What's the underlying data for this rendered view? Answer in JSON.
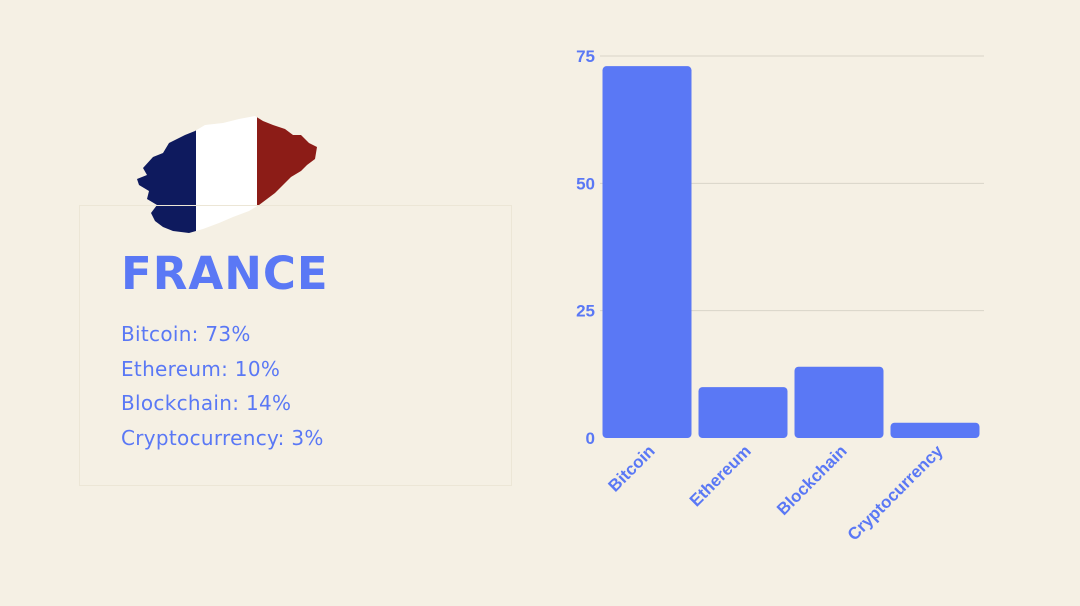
{
  "country": {
    "name": "FRANCE",
    "flag_colors": [
      "#0e1a5e",
      "#ffffff",
      "#8c1c17"
    ]
  },
  "stats": [
    "Bitcoin: 73%",
    "Ethereum: 10%",
    "Blockchain: 14%",
    "Cryptocurrency: 3%"
  ],
  "chart_data": {
    "type": "bar",
    "categories": [
      "Bitcoin",
      "Ethereum",
      "Blockchain",
      "Cryptocurrency"
    ],
    "values": [
      73,
      10,
      14,
      3
    ],
    "yticks": [
      0,
      25,
      50,
      75
    ],
    "ylim": [
      0,
      75
    ],
    "title": "",
    "xlabel": "",
    "ylabel": "",
    "grid": true,
    "bar_color": "#5a78f5",
    "grid_color": "#d9d4c8"
  }
}
